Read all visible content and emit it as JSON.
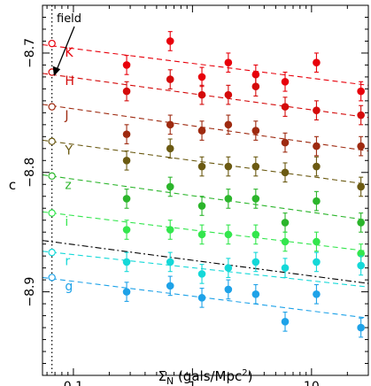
{
  "chart_data": {
    "type": "scatter",
    "title": "",
    "xlabel": "Σ_N (gals/Mpc²)",
    "ylabel": "c",
    "xscale": "log",
    "xlim": [
      0.055,
      30
    ],
    "ylim": [
      -8.97,
      -8.66
    ],
    "ylim_direction": "inverted",
    "x_ticks": [
      0.1,
      1,
      10
    ],
    "x_tick_labels": [
      "0.1",
      "1",
      "10"
    ],
    "y_ticks": [
      -8.7,
      -8.8,
      -8.9
    ],
    "y_tick_labels": [
      "−8.7",
      "−8.8",
      "−8.9"
    ],
    "x": [
      0.28,
      0.65,
      1.2,
      2.0,
      3.4,
      6.0,
      11.0,
      26.0
    ],
    "field": {
      "label": "field",
      "x": 0.066
    },
    "series": [
      {
        "name": "K",
        "color": "#e8000b",
        "field_y": -8.692,
        "y": [
          -8.71,
          -8.69,
          -8.72,
          -8.708,
          -8.718,
          -8.724,
          -8.708,
          -8.732
        ],
        "yerr": [
          0.008,
          0.008,
          0.008,
          0.008,
          0.008,
          0.008,
          0.008,
          0.008
        ],
        "fit": {
          "y_start": -8.693,
          "y_end": -8.727
        }
      },
      {
        "name": "H",
        "color": "#d40a0a",
        "field_y": -8.716,
        "y": [
          -8.732,
          -8.722,
          -8.735,
          -8.735,
          -8.728,
          -8.745,
          -8.748,
          -8.752
        ],
        "yerr": [
          0.008,
          0.008,
          0.008,
          0.008,
          0.008,
          0.008,
          0.008,
          0.008
        ],
        "fit": {
          "y_start": -8.717,
          "y_end": -8.754
        }
      },
      {
        "name": "J",
        "color": "#9e2a10",
        "field_y": -8.745,
        "y": [
          -8.768,
          -8.76,
          -8.765,
          -8.76,
          -8.765,
          -8.775,
          -8.778,
          -8.778
        ],
        "yerr": [
          0.008,
          0.008,
          0.008,
          0.008,
          0.008,
          0.008,
          0.008,
          0.008
        ],
        "fit": {
          "y_start": -8.743,
          "y_end": -8.782
        }
      },
      {
        "name": "Y",
        "color": "#6b5a12",
        "field_y": -8.774,
        "y": [
          -8.79,
          -8.78,
          -8.795,
          -8.795,
          -8.795,
          -8.8,
          -8.795,
          -8.812
        ],
        "yerr": [
          0.008,
          0.008,
          0.008,
          0.008,
          0.008,
          0.008,
          0.008,
          0.008
        ],
        "fit": {
          "y_start": -8.773,
          "y_end": -8.81
        }
      },
      {
        "name": "z",
        "color": "#2bb52b",
        "field_y": -8.803,
        "y": [
          -8.822,
          -8.812,
          -8.828,
          -8.822,
          -8.822,
          -8.842,
          -8.824,
          -8.842
        ],
        "yerr": [
          0.008,
          0.008,
          0.008,
          0.008,
          0.008,
          0.008,
          0.008,
          0.008
        ],
        "fit": {
          "y_start": -8.802,
          "y_end": -8.84
        }
      },
      {
        "name": "i",
        "color": "#33e64d",
        "field_y": -8.834,
        "y": [
          -8.848,
          -8.848,
          -8.852,
          -8.852,
          -8.852,
          -8.858,
          -8.858,
          -8.868
        ],
        "yerr": [
          0.008,
          0.008,
          0.008,
          0.008,
          0.008,
          0.008,
          0.008,
          0.008
        ],
        "fit": {
          "y_start": -8.833,
          "y_end": -8.866
        }
      },
      {
        "name": "r",
        "color": "#14d8d8",
        "field_y": -8.867,
        "y": [
          -8.875,
          -8.875,
          -8.885,
          -8.88,
          -8.875,
          -8.88,
          -8.875,
          -8.878
        ],
        "yerr": [
          0.008,
          0.008,
          0.008,
          0.008,
          0.008,
          0.008,
          0.008,
          0.008
        ],
        "fit": {
          "y_start": -8.866,
          "y_end": -8.896
        }
      },
      {
        "name": "g",
        "color": "#1ea2e8",
        "field_y": -8.888,
        "y": [
          -8.9,
          -8.895,
          -8.905,
          -8.898,
          -8.902,
          -8.925,
          -8.902,
          -8.93
        ],
        "yerr": [
          0.008,
          0.008,
          0.008,
          0.008,
          0.008,
          0.008,
          0.008,
          0.008
        ],
        "fit": {
          "y_start": -8.888,
          "y_end": -8.922
        }
      }
    ],
    "reference_line": {
      "color": "#000000",
      "style": "dash-dot",
      "y_start": -8.857,
      "y_end": -8.893
    },
    "grid": false
  }
}
